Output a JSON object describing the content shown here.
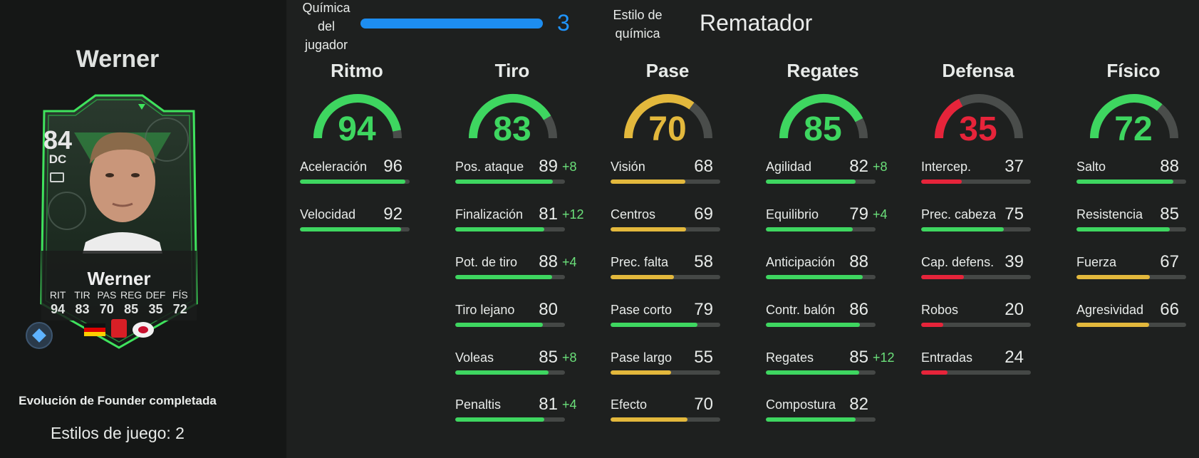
{
  "colors": {
    "green": "#3ed660",
    "yellow": "#e3b83c",
    "red": "#e6243a",
    "gauge_track": "#4a4d4b",
    "chem_blue": "#1f95ff"
  },
  "player": {
    "title": "Werner",
    "card": {
      "rating": "84",
      "position": "DC",
      "name": "Werner",
      "stats": [
        {
          "label": "RIT",
          "value": "94"
        },
        {
          "label": "TIR",
          "value": "83"
        },
        {
          "label": "PAS",
          "value": "70"
        },
        {
          "label": "REG",
          "value": "85"
        },
        {
          "label": "DEF",
          "value": "35"
        },
        {
          "label": "FÍS",
          "value": "72"
        }
      ]
    },
    "evolution_text": "Evolución de Founder completada",
    "playstyles_text": "Estilos de juego: 2"
  },
  "chemistry": {
    "label": "Química del jugador",
    "label_lines": [
      "Química",
      "del",
      "jugador"
    ],
    "value": "3",
    "max": 3
  },
  "chem_style": {
    "label_lines": [
      "Estilo de",
      "química"
    ],
    "value": "Rematador"
  },
  "categories": [
    {
      "name": "Ritmo",
      "value": 94,
      "color": "green",
      "attributes": [
        {
          "name": "Aceleración",
          "value": 96,
          "boost": "",
          "color": "green"
        },
        {
          "name": "Velocidad",
          "value": 92,
          "boost": "",
          "color": "green"
        }
      ]
    },
    {
      "name": "Tiro",
      "value": 83,
      "color": "green",
      "attributes": [
        {
          "name": "Pos. ataque",
          "value": 89,
          "boost": "+8",
          "color": "green"
        },
        {
          "name": "Finalización",
          "value": 81,
          "boost": "+12",
          "color": "green"
        },
        {
          "name": "Pot. de tiro",
          "value": 88,
          "boost": "+4",
          "color": "green"
        },
        {
          "name": "Tiro lejano",
          "value": 80,
          "boost": "",
          "color": "green"
        },
        {
          "name": "Voleas",
          "value": 85,
          "boost": "+8",
          "color": "green"
        },
        {
          "name": "Penaltis",
          "value": 81,
          "boost": "+4",
          "color": "green"
        }
      ]
    },
    {
      "name": "Pase",
      "value": 70,
      "color": "yellow",
      "attributes": [
        {
          "name": "Visión",
          "value": 68,
          "boost": "",
          "color": "yellow"
        },
        {
          "name": "Centros",
          "value": 69,
          "boost": "",
          "color": "yellow"
        },
        {
          "name": "Prec. falta",
          "value": 58,
          "boost": "",
          "color": "yellow"
        },
        {
          "name": "Pase corto",
          "value": 79,
          "boost": "",
          "color": "green"
        },
        {
          "name": "Pase largo",
          "value": 55,
          "boost": "",
          "color": "yellow"
        },
        {
          "name": "Efecto",
          "value": 70,
          "boost": "",
          "color": "yellow"
        }
      ]
    },
    {
      "name": "Regates",
      "value": 85,
      "color": "green",
      "attributes": [
        {
          "name": "Agilidad",
          "value": 82,
          "boost": "+8",
          "color": "green"
        },
        {
          "name": "Equilibrio",
          "value": 79,
          "boost": "+4",
          "color": "green"
        },
        {
          "name": "Anticipación",
          "value": 88,
          "boost": "",
          "color": "green"
        },
        {
          "name": "Contr. balón",
          "value": 86,
          "boost": "",
          "color": "green"
        },
        {
          "name": "Regates",
          "value": 85,
          "boost": "+12",
          "color": "green"
        },
        {
          "name": "Compostura",
          "value": 82,
          "boost": "",
          "color": "green"
        }
      ]
    },
    {
      "name": "Defensa",
      "value": 35,
      "color": "red",
      "attributes": [
        {
          "name": "Intercep.",
          "value": 37,
          "boost": "",
          "color": "red"
        },
        {
          "name": "Prec. cabeza",
          "value": 75,
          "boost": "",
          "color": "green"
        },
        {
          "name": "Cap. defens.",
          "value": 39,
          "boost": "",
          "color": "red"
        },
        {
          "name": "Robos",
          "value": 20,
          "boost": "",
          "color": "red"
        },
        {
          "name": "Entradas",
          "value": 24,
          "boost": "",
          "color": "red"
        }
      ]
    },
    {
      "name": "Físico",
      "value": 72,
      "color": "green",
      "attributes": [
        {
          "name": "Salto",
          "value": 88,
          "boost": "",
          "color": "green"
        },
        {
          "name": "Resistencia",
          "value": 85,
          "boost": "",
          "color": "green"
        },
        {
          "name": "Fuerza",
          "value": 67,
          "boost": "",
          "color": "yellow"
        },
        {
          "name": "Agresividad",
          "value": 66,
          "boost": "",
          "color": "yellow"
        }
      ]
    }
  ]
}
